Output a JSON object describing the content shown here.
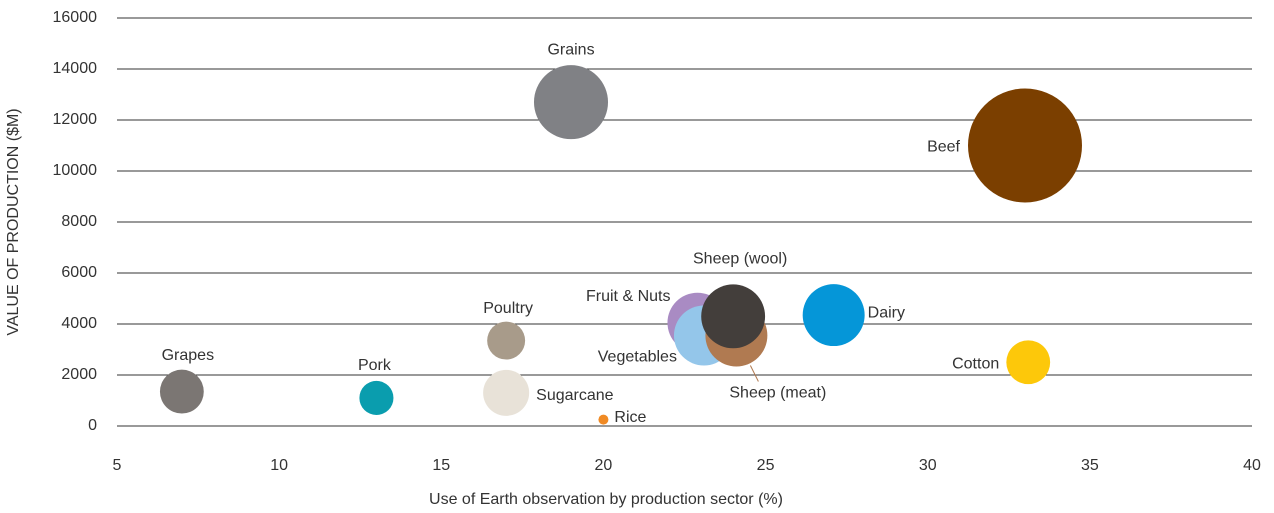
{
  "chart_data": {
    "type": "bubble",
    "x_label": "Use of Earth observation by production sector (%)",
    "y_label": "VALUE OF PRODUCTION ($M)",
    "categories": [
      "Grapes",
      "Pork",
      "Poultry",
      "Sugarcane",
      "Rice",
      "Grains",
      "Fruit & Nuts",
      "Vegetables",
      "Sheep (meat)",
      "Sheep (wool)",
      "Dairy",
      "Cotton",
      "Beef"
    ],
    "x": [
      7,
      13,
      17,
      17,
      20,
      19,
      22.9,
      23.1,
      24.1,
      24,
      27.1,
      33.1,
      33
    ],
    "values": [
      1350,
      1100,
      3350,
      1300,
      250,
      12700,
      4050,
      3550,
      3550,
      4300,
      4350,
      2500,
      11000
    ],
    "sizes": [
      48,
      29,
      36,
      53,
      2.5,
      137,
      90,
      90,
      96,
      102,
      96,
      48,
      325
    ],
    "colors": [
      "#7b7673",
      "#0a9dae",
      "#a89b8a",
      "#e8e2d8",
      "#f08a24",
      "#808185",
      "#a98bc3",
      "#94c6ea",
      "#b07a51",
      "#433e3b",
      "#0596d8",
      "#fdc80a",
      "#7b3f00"
    ],
    "xlim": [
      5,
      40
    ],
    "xticks": [
      5,
      10,
      15,
      20,
      25,
      30,
      35,
      40
    ],
    "ylim": [
      0,
      16000
    ],
    "yticks": [
      0,
      2000,
      4000,
      6000,
      8000,
      10000,
      12000,
      14000,
      16000
    ],
    "grid": true
  }
}
